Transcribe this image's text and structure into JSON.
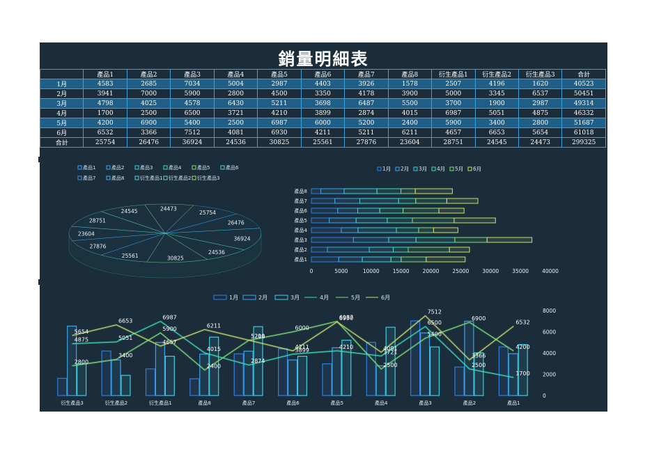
{
  "title": "銷量明細表",
  "table": {
    "header": [
      "",
      "產品1",
      "產品2",
      "產品3",
      "產品4",
      "產品5",
      "產品6",
      "產品7",
      "產品8",
      "衍生產品1",
      "衍生產品2",
      "衍生產品3",
      "合計"
    ],
    "rows": [
      [
        "1月",
        "4583",
        "2685",
        "7034",
        "5004",
        "2987",
        "4403",
        "3926",
        "1578",
        "2507",
        "4196",
        "1620",
        "40523"
      ],
      [
        "2月",
        "3941",
        "7000",
        "5900",
        "2800",
        "4500",
        "3350",
        "4178",
        "3900",
        "5000",
        "3345",
        "6537",
        "50451"
      ],
      [
        "3月",
        "4798",
        "4025",
        "4578",
        "6430",
        "5211",
        "3698",
        "6487",
        "5500",
        "3700",
        "1900",
        "2987",
        "49314"
      ],
      [
        "4月",
        "1700",
        "2500",
        "6500",
        "3721",
        "4210",
        "3899",
        "2874",
        "4015",
        "6987",
        "5051",
        "4875",
        "46332"
      ],
      [
        "5月",
        "4200",
        "6900",
        "5400",
        "2500",
        "6987",
        "6000",
        "5200",
        "2400",
        "5900",
        "3400",
        "2800",
        "51687"
      ],
      [
        "6月",
        "6532",
        "3366",
        "7512",
        "4081",
        "6930",
        "4211",
        "5211",
        "6211",
        "4657",
        "6653",
        "5654",
        "61018"
      ],
      [
        "合計",
        "25754",
        "26476",
        "36924",
        "24536",
        "30825",
        "25561",
        "27876",
        "23604",
        "28751",
        "24545",
        "24473",
        "299325"
      ]
    ]
  },
  "chart_data": [
    {
      "type": "pie",
      "style": "3d",
      "legend_position": "top-left",
      "categories": [
        "產品1",
        "產品2",
        "產品3",
        "產品4",
        "產品5",
        "產品6",
        "產品7",
        "產品8",
        "衍生產品1",
        "衍生產品2",
        "衍生產品3"
      ],
      "values": [
        25754,
        26476,
        36924,
        24536,
        30825,
        25561,
        27876,
        23604,
        28751,
        24545,
        24473
      ],
      "colors": [
        "#2fa6ff",
        "#3aa8f0",
        "#36d0e0",
        "#3ce0b0",
        "#7fe07a",
        "#55c8e8",
        "#4a8fe0",
        "#4ab0e8",
        "#4fd6d0",
        "#6fd8b0",
        "#9be07a"
      ]
    },
    {
      "type": "bar",
      "orientation": "horizontal",
      "stacked": true,
      "legend_position": "top",
      "categories": [
        "產品1",
        "產品2",
        "產品3",
        "產品4",
        "產品5",
        "產品6",
        "產品7",
        "產品8"
      ],
      "series": [
        {
          "name": "1月",
          "color": "#2f7fe0",
          "values": [
            4583,
            2685,
            7034,
            5004,
            2987,
            4403,
            3926,
            1578
          ]
        },
        {
          "name": "2月",
          "color": "#39a6e8",
          "values": [
            3941,
            7000,
            5900,
            2800,
            4500,
            3350,
            4178,
            3900
          ]
        },
        {
          "name": "3月",
          "color": "#39d0e0",
          "values": [
            4798,
            4025,
            4578,
            6430,
            5211,
            3698,
            6487,
            5500
          ]
        },
        {
          "name": "4月",
          "color": "#3ce0b8",
          "values": [
            1700,
            2500,
            6500,
            3721,
            4210,
            3899,
            2874,
            4015
          ]
        },
        {
          "name": "5月",
          "color": "#7fe07a",
          "values": [
            4200,
            6900,
            5400,
            2500,
            6987,
            6000,
            5200,
            2400
          ]
        },
        {
          "name": "6月",
          "color": "#c8e06a",
          "values": [
            6532,
            3366,
            7512,
            4081,
            6930,
            4211,
            5211,
            6211
          ]
        }
      ],
      "xlim": [
        0,
        40000
      ],
      "xticks": [
        "0",
        "5000",
        "10000",
        "15000",
        "20000",
        "25000",
        "30000",
        "35000",
        "40000"
      ]
    },
    {
      "type": "bar",
      "combo": "bar+line",
      "legend_position": "top",
      "categories": [
        "衍生產品3",
        "衍生產品2",
        "衍生產品1",
        "產品8",
        "產品7",
        "產品6",
        "產品5",
        "產品4",
        "產品3",
        "產品2",
        "產品1"
      ],
      "series": [
        {
          "name": "1月",
          "kind": "bar",
          "color": "#2f7fe0",
          "values": [
            1620,
            4196,
            2507,
            1578,
            3926,
            4403,
            2987,
            5004,
            7034,
            2685,
            4583
          ]
        },
        {
          "name": "2月",
          "kind": "bar",
          "color": "#39a6e8",
          "values": [
            6537,
            3345,
            5000,
            3900,
            4178,
            3350,
            4500,
            2800,
            5900,
            7000,
            3941
          ]
        },
        {
          "name": "3月",
          "kind": "bar",
          "color": "#39d0e0",
          "values": [
            2987,
            1900,
            3700,
            5500,
            6487,
            3698,
            5211,
            6430,
            4578,
            4025,
            4798
          ]
        },
        {
          "name": "4月",
          "kind": "line",
          "color": "#3ce0b8",
          "values": [
            4875,
            5051,
            6987,
            4015,
            2874,
            3899,
            4210,
            3721,
            6500,
            2500,
            1700
          ]
        },
        {
          "name": "5月",
          "kind": "line",
          "color": "#7fe07a",
          "values": [
            2800,
            3400,
            5900,
            2400,
            5200,
            6000,
            6987,
            2500,
            5400,
            6900,
            4200
          ]
        },
        {
          "name": "6月",
          "kind": "line",
          "color": "#c8e06a",
          "values": [
            5654,
            6653,
            4657,
            6211,
            5211,
            4211,
            6930,
            4081,
            7512,
            3366,
            6532
          ]
        }
      ],
      "ylim": [
        0,
        8000
      ],
      "yticks": [
        "0",
        "2000",
        "4000",
        "6000",
        "8000"
      ],
      "y_axis_position": "right"
    }
  ]
}
